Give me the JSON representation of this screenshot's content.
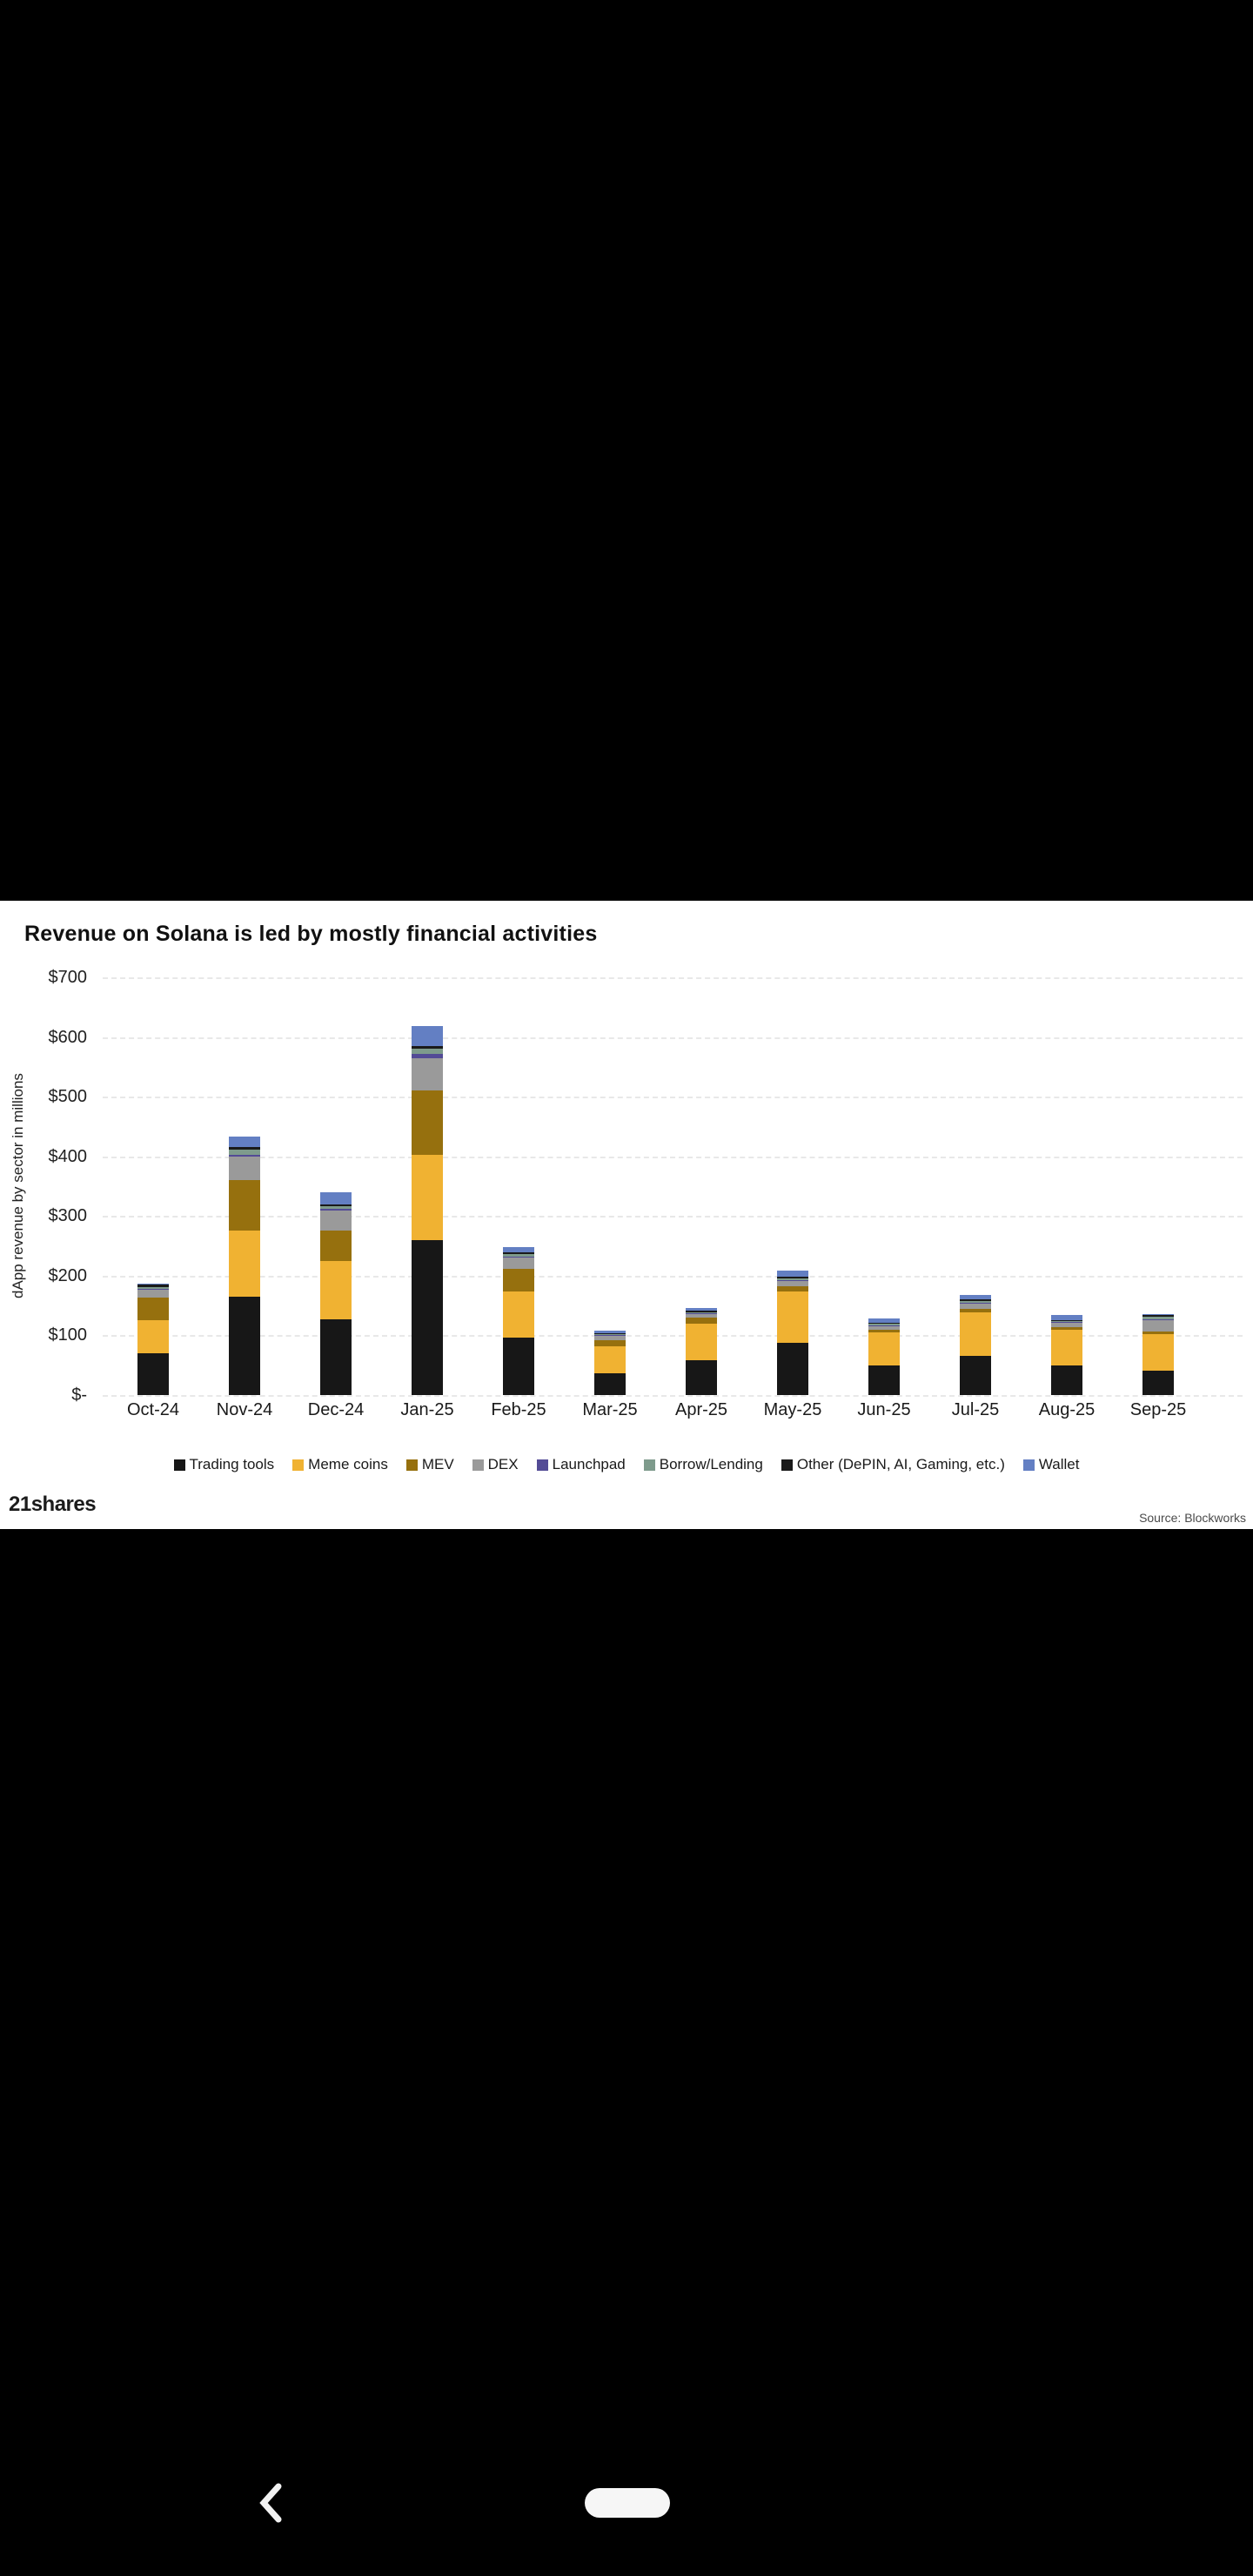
{
  "chart_panel": {
    "title": "Revenue on Solana is led by mostly financial activities",
    "brand": "21shares",
    "source": "Source: Blockworks"
  },
  "chart_data": {
    "type": "bar",
    "stacked": true,
    "title": "Revenue on Solana is led by mostly financial activities",
    "xlabel": "",
    "ylabel": "dApp revenue by sector in millions",
    "ylim": [
      0,
      700
    ],
    "ytick_step": 100,
    "ytick_labels": [
      "$-",
      "$100",
      "$200",
      "$300",
      "$400",
      "$500",
      "$600",
      "$700"
    ],
    "grid": true,
    "legend_position": "bottom",
    "categories": [
      "Oct-24",
      "Nov-24",
      "Dec-24",
      "Jan-25",
      "Feb-25",
      "Mar-25",
      "Apr-25",
      "May-25",
      "Jun-25",
      "Jul-25",
      "Aug-25",
      "Sep-25"
    ],
    "series": [
      {
        "name": "Trading tools",
        "color": "#171717",
        "values": [
          70,
          165,
          127,
          260,
          97,
          37,
          59,
          87,
          49,
          65,
          49,
          41
        ]
      },
      {
        "name": "Meme coins",
        "color": "#f0b232",
        "values": [
          55,
          110,
          98,
          142,
          76,
          45,
          61,
          87,
          56,
          74,
          60,
          61
        ]
      },
      {
        "name": "MEV",
        "color": "#96700e",
        "values": [
          38,
          85,
          51,
          108,
          39,
          10,
          10,
          8,
          5,
          6,
          5,
          4
        ]
      },
      {
        "name": "DEX",
        "color": "#9a9a9a",
        "values": [
          13,
          40,
          33,
          55,
          18,
          7,
          6,
          9,
          6,
          8,
          7,
          20
        ]
      },
      {
        "name": "Launchpad",
        "color": "#534b96",
        "values": [
          2,
          3,
          3,
          7,
          2,
          1,
          1,
          2,
          1,
          2,
          1,
          1
        ]
      },
      {
        "name": "Borrow/Lending",
        "color": "#7e9b8c",
        "values": [
          3,
          8,
          5,
          8,
          4,
          2,
          2,
          3,
          2,
          3,
          2,
          4
        ]
      },
      {
        "name": "Other (DePIN, AI, Gaming, etc.)",
        "color": "#1a1a1a",
        "values": [
          4,
          4,
          3,
          5,
          3,
          2,
          2,
          3,
          2,
          2,
          2,
          3
        ]
      },
      {
        "name": "Wallet",
        "color": "#637fc3",
        "values": [
          2,
          18,
          20,
          33,
          9,
          4,
          5,
          9,
          7,
          8,
          8,
          1
        ]
      }
    ]
  },
  "icons": {
    "back": "chevron-left",
    "home": "home-pill"
  }
}
